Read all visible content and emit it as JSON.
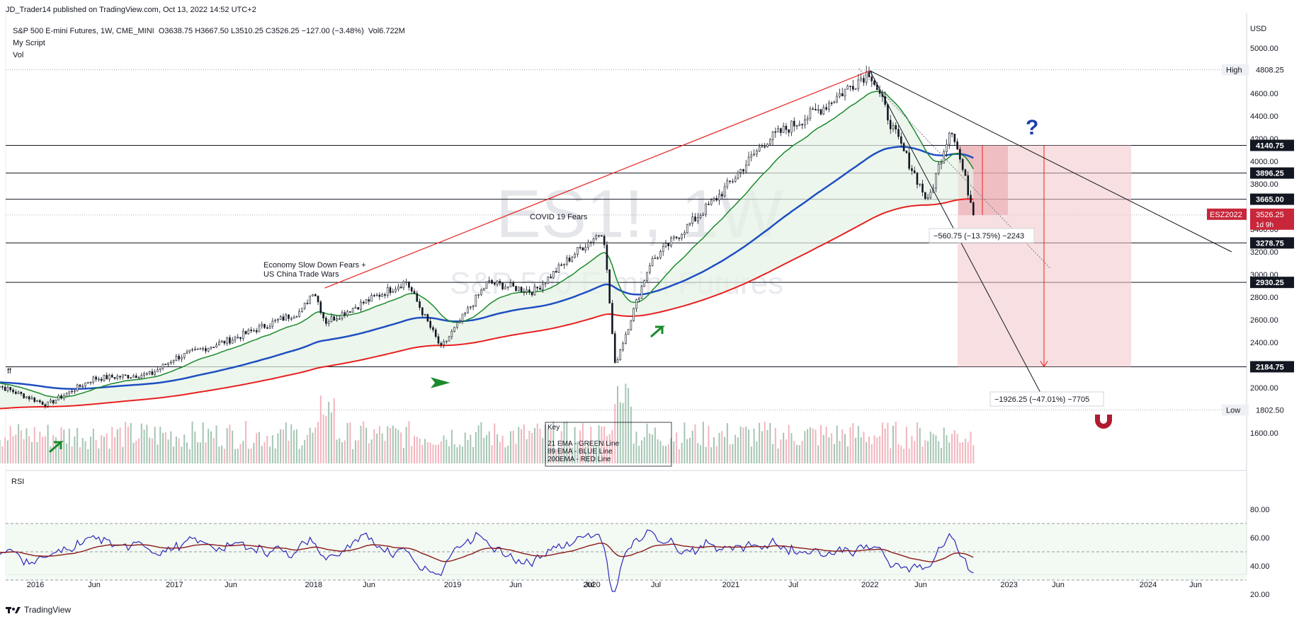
{
  "publisher": "JD_Trader14 published on TradingView.com, Oct 13, 2022 14:52 UTC+2",
  "symbol_line": {
    "symbol": "S&P 500 E-mini Futures, 1W, CME_MINI",
    "ohlc": "O3638.75  H3667.50  L3510.25  C3526.25  −127.00 (−3.48%)",
    "vol": "Vol6.722M"
  },
  "indicators": [
    "My Script",
    "Vol"
  ],
  "watermark": {
    "ticker": "ES1!, 1W",
    "name": "S&P 500 E-mini Futures"
  },
  "price_axis": {
    "currency": "USD",
    "ticks": [
      "5000.00",
      "4600.00",
      "4400.00",
      "4200.00",
      "4000.00",
      "3800.00",
      "3400.00",
      "3200.00",
      "3000.00",
      "2800.00",
      "2600.00",
      "2400.00",
      "2000.00",
      "1600.00"
    ]
  },
  "price_labels": [
    {
      "value": "4808.25",
      "tag": "High"
    },
    {
      "value": "4140.75"
    },
    {
      "value": "3896.25"
    },
    {
      "value": "3665.00"
    },
    {
      "value": "3278.75"
    },
    {
      "value": "2930.25"
    },
    {
      "value": "2184.75"
    },
    {
      "value": "1802.50",
      "tag": "Low"
    }
  ],
  "current_price": {
    "symbol": "ESZ2022",
    "price": "3526.25",
    "countdown": "1d 9h"
  },
  "rsi_label": "RSI",
  "rsi_axis": [
    "80.00",
    "60.00",
    "40.00",
    "20.00"
  ],
  "x_axis": [
    "2016",
    "Jun",
    "2017",
    "Jun",
    "2018",
    "Jun",
    "2019",
    "Jun",
    "Jul",
    "2020",
    "Jul",
    "2021",
    "Jul",
    "2022",
    "Jun",
    "2023",
    "Jun",
    "2024",
    "Jun"
  ],
  "annotations": {
    "covid": "COVID 19 Fears",
    "economy_1": "Economy Slow Down Fears +",
    "economy_2": "US China Trade Wars",
    "measure_small": "−560.75 (−13.75%) −2243",
    "measure_big": "−1926.25 (−47.01%) −7705",
    "question": "?",
    "ff": "ff",
    "key_title": "Key",
    "key_lines": [
      "21 EMA - GREEN Line",
      "89 EMA - BLUE Line",
      "200EMA - RED Line"
    ]
  },
  "footer": {
    "brand": "TradingView"
  },
  "colors": {
    "candle": "#131722",
    "ema21": "#1b8a2b",
    "ema89": "#1e4fc2",
    "ema200": "#e82020",
    "fill": "#e6f2e6",
    "zone": "#f2c4c8",
    "rsi": "#2a2ab8",
    "rsi_ma": "#8b1a1a",
    "label_bg": "#131722",
    "price_badge": "#c8263a"
  },
  "chart_data": {
    "type": "candlestick",
    "timeframe": "1W",
    "x_range": [
      "2015-09",
      "2024-10"
    ],
    "y_range": [
      1400,
      5100
    ],
    "key_points": [
      {
        "date": "2015-09",
        "price": 2050
      },
      {
        "date": "2016-02",
        "price": 1850
      },
      {
        "date": "2016-06",
        "price": 2080
      },
      {
        "date": "2016-11",
        "price": 2120
      },
      {
        "date": "2017-01",
        "price": 2260
      },
      {
        "date": "2017-06",
        "price": 2430
      },
      {
        "date": "2017-12",
        "price": 2680
      },
      {
        "date": "2018-01",
        "price": 2870
      },
      {
        "date": "2018-02",
        "price": 2580
      },
      {
        "date": "2018-09",
        "price": 2940
      },
      {
        "date": "2018-12",
        "price": 2350
      },
      {
        "date": "2019-04",
        "price": 2930
      },
      {
        "date": "2019-08",
        "price": 2850
      },
      {
        "date": "2019-12",
        "price": 3230
      },
      {
        "date": "2020-02",
        "price": 3390
      },
      {
        "date": "2020-03",
        "price": 2200
      },
      {
        "date": "2020-06",
        "price": 3100
      },
      {
        "date": "2020-09",
        "price": 3400
      },
      {
        "date": "2020-12",
        "price": 3700
      },
      {
        "date": "2021-04",
        "price": 4180
      },
      {
        "date": "2021-09",
        "price": 4480
      },
      {
        "date": "2022-01",
        "price": 4800
      },
      {
        "date": "2022-03",
        "price": 4280
      },
      {
        "date": "2022-06",
        "price": 3640
      },
      {
        "date": "2022-08",
        "price": 4320
      },
      {
        "date": "2022-10",
        "price": 3526
      }
    ],
    "levels": [
      4808.25,
      4140.75,
      3896.25,
      3665.0,
      3278.75,
      2930.25,
      2184.75,
      1802.5
    ],
    "ema_lines": [
      "21 EMA",
      "89 EMA",
      "200EMA"
    ],
    "rsi_range": [
      20,
      90
    ],
    "rsi_levels": [
      70,
      50,
      30
    ]
  }
}
